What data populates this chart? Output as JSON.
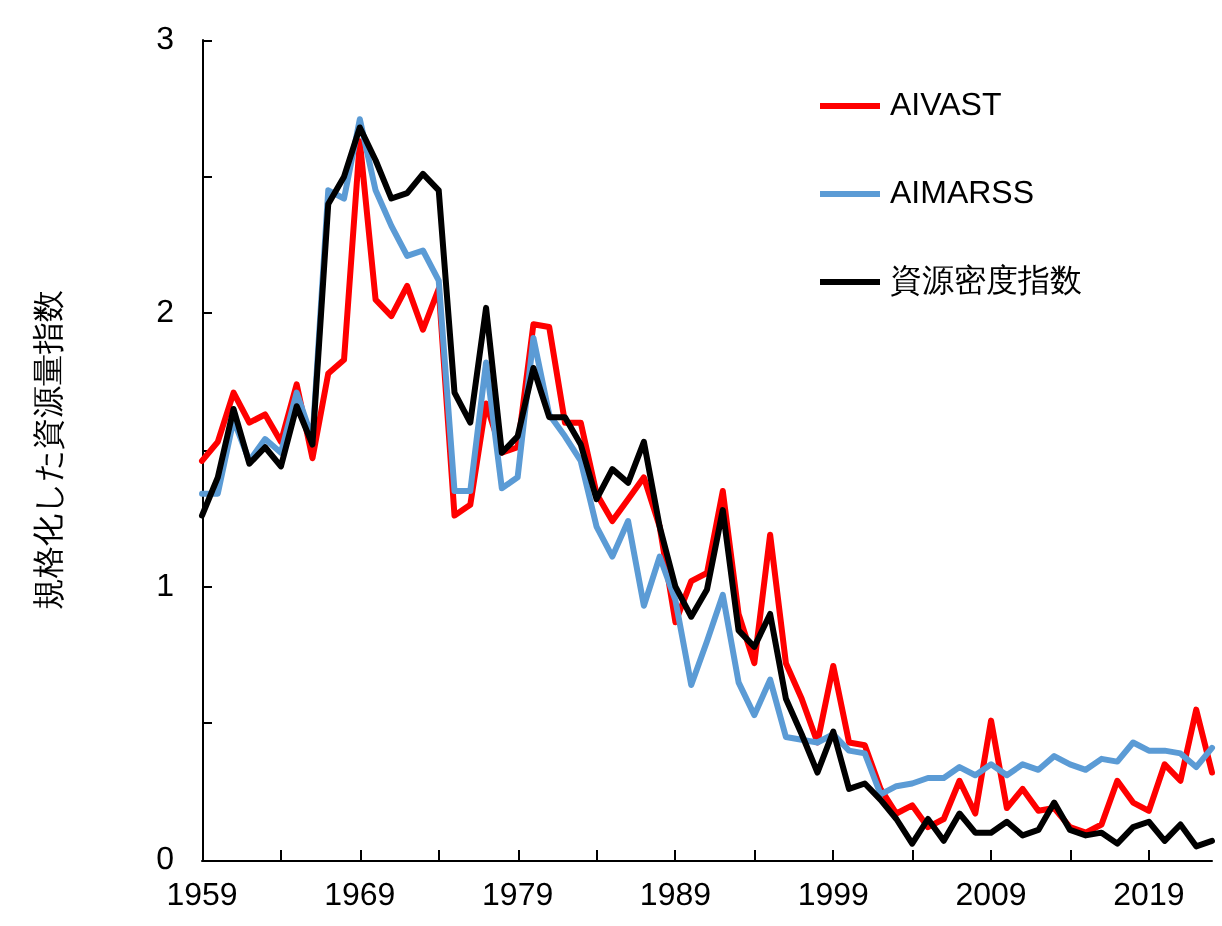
{
  "chart_data": {
    "type": "line",
    "ylabel": "規格化した資源量指数",
    "x": [
      1959,
      1960,
      1961,
      1962,
      1963,
      1964,
      1965,
      1966,
      1967,
      1968,
      1969,
      1970,
      1971,
      1972,
      1973,
      1974,
      1975,
      1976,
      1977,
      1978,
      1979,
      1980,
      1981,
      1982,
      1983,
      1984,
      1985,
      1986,
      1987,
      1988,
      1989,
      1990,
      1991,
      1992,
      1993,
      1994,
      1995,
      1996,
      1997,
      1998,
      1999,
      2000,
      2001,
      2002,
      2003,
      2004,
      2005,
      2006,
      2007,
      2008,
      2009,
      2010,
      2011,
      2012,
      2013,
      2014,
      2015,
      2016,
      2017,
      2018,
      2019,
      2020,
      2021,
      2022,
      2023
    ],
    "series": [
      {
        "name": "AIVAST",
        "color": "#ff0000",
        "values": [
          1.46,
          1.53,
          1.71,
          1.6,
          1.63,
          1.53,
          1.74,
          1.47,
          1.78,
          1.83,
          2.63,
          2.05,
          1.99,
          2.1,
          1.94,
          2.09,
          1.26,
          1.3,
          1.67,
          1.49,
          1.51,
          1.96,
          1.95,
          1.6,
          1.6,
          1.34,
          1.24,
          1.32,
          1.4,
          1.22,
          0.87,
          1.02,
          1.05,
          1.35,
          0.9,
          0.72,
          1.19,
          0.72,
          0.59,
          0.43,
          0.71,
          0.43,
          0.42,
          0.26,
          0.17,
          0.2,
          0.12,
          0.15,
          0.29,
          0.17,
          0.51,
          0.19,
          0.26,
          0.18,
          0.19,
          0.12,
          0.1,
          0.13,
          0.29,
          0.21,
          0.18,
          0.35,
          0.29,
          0.55,
          0.32
        ]
      },
      {
        "name": "AIMARSS",
        "color": "#5b9bd5",
        "values": [
          1.34,
          1.34,
          1.61,
          1.46,
          1.54,
          1.49,
          1.71,
          1.54,
          2.45,
          2.42,
          2.71,
          2.45,
          2.32,
          2.21,
          2.23,
          2.12,
          1.35,
          1.35,
          1.82,
          1.36,
          1.4,
          1.91,
          1.63,
          1.55,
          1.46,
          1.22,
          1.11,
          1.24,
          0.93,
          1.11,
          0.95,
          0.64,
          0.8,
          0.97,
          0.65,
          0.53,
          0.66,
          0.45,
          0.44,
          0.43,
          0.46,
          0.4,
          0.39,
          0.24,
          0.27,
          0.28,
          0.3,
          0.3,
          0.34,
          0.31,
          0.35,
          0.31,
          0.35,
          0.33,
          0.38,
          0.35,
          0.33,
          0.37,
          0.36,
          0.43,
          0.4,
          0.4,
          0.39,
          0.34,
          0.41
        ]
      },
      {
        "name": "資源密度指数",
        "color": "#000000",
        "values": [
          1.26,
          1.4,
          1.65,
          1.45,
          1.51,
          1.44,
          1.66,
          1.52,
          2.4,
          2.5,
          2.68,
          2.56,
          2.42,
          2.44,
          2.51,
          2.45,
          1.71,
          1.6,
          2.02,
          1.49,
          1.55,
          1.8,
          1.62,
          1.62,
          1.52,
          1.32,
          1.43,
          1.38,
          1.53,
          1.22,
          1.0,
          0.89,
          0.99,
          1.28,
          0.84,
          0.78,
          0.9,
          0.59,
          0.46,
          0.32,
          0.47,
          0.26,
          0.28,
          0.22,
          0.15,
          0.06,
          0.15,
          0.07,
          0.17,
          0.1,
          0.1,
          0.14,
          0.09,
          0.11,
          0.21,
          0.11,
          0.09,
          0.1,
          0.06,
          0.12,
          0.14,
          0.07,
          0.13,
          0.05,
          0.07
        ]
      }
    ],
    "xlim": [
      1959,
      2023
    ],
    "xticks": [
      1959,
      {
        "value": 1964,
        "label": null
      },
      1969,
      {
        "value": 1974,
        "label": null
      },
      1979,
      {
        "value": 1984,
        "label": null
      },
      1989,
      {
        "value": 1994,
        "label": null
      },
      1999,
      {
        "value": 2004,
        "label": null
      },
      2009,
      {
        "value": 2014,
        "label": null
      },
      2019
    ],
    "ylim": [
      0,
      3
    ],
    "yticks": [
      0,
      {
        "value": 0.5,
        "label": null
      },
      1,
      {
        "value": 1.5,
        "label": null
      },
      2,
      {
        "value": 2.5,
        "label": null
      },
      3
    ],
    "grid": false,
    "legend": "top right",
    "marker": "none",
    "line_style": "solid"
  }
}
